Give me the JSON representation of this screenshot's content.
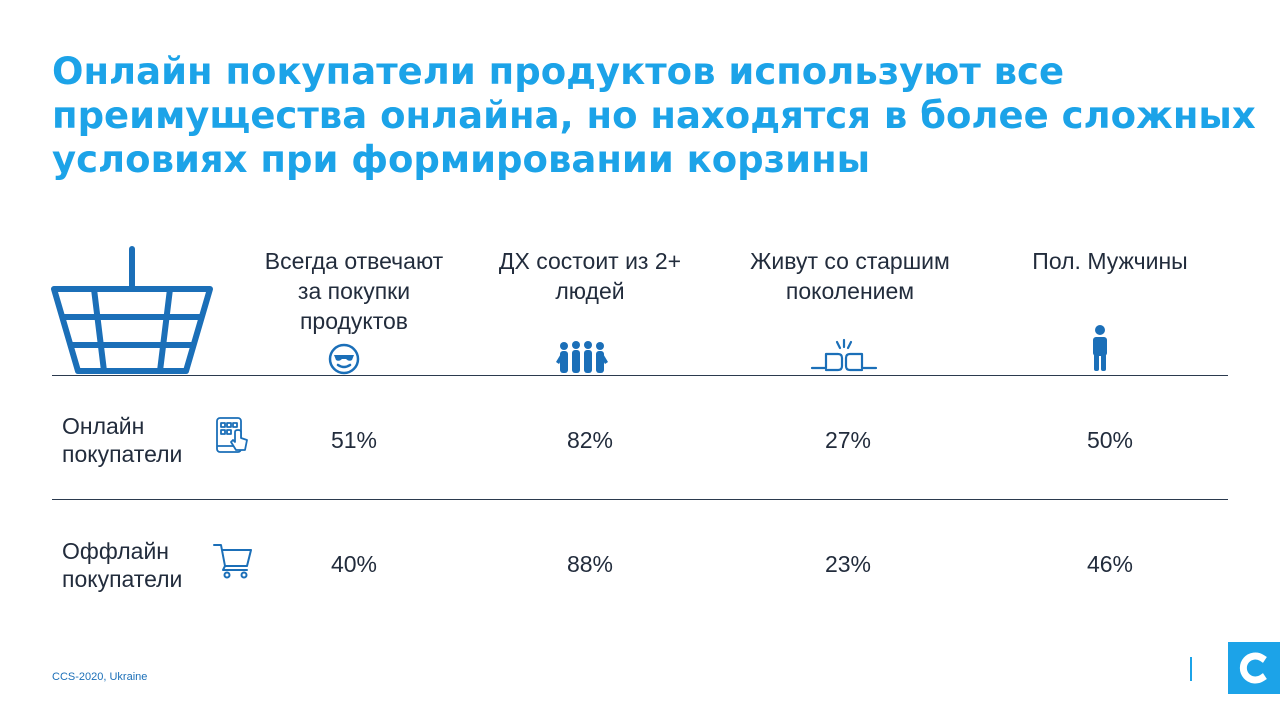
{
  "title": {
    "lines": [
      "Онлайн покупатели продуктов используют все",
      "преимущества онлайна, но находятся в более сложных",
      "условиях при формировании корзины"
    ]
  },
  "columns": [
    {
      "lines": [
        "Всегда отвечают",
        "за покупки",
        "продуктов"
      ],
      "icon": "sunglasses-smiley-icon"
    },
    {
      "lines": [
        "ДХ состоит из 2+",
        "людей"
      ],
      "icon": "people-group-icon"
    },
    {
      "lines": [
        "Живут со старшим",
        "поколением"
      ],
      "icon": "fist-bump-icon"
    },
    {
      "lines": [
        "Пол. Мужчины"
      ],
      "icon": "man-icon"
    }
  ],
  "rows": [
    {
      "label_lines": [
        "Онлайн",
        "покупатели"
      ],
      "icon": "tablet-touch-icon",
      "values": [
        "51%",
        "82%",
        "27%",
        "50%"
      ]
    },
    {
      "label_lines": [
        "Оффлайн",
        "покупатели"
      ],
      "icon": "shopping-cart-icon",
      "values": [
        "40%",
        "88%",
        "23%",
        "46%"
      ]
    }
  ],
  "footer": {
    "source": "CCS-2020, Ukraine"
  },
  "colors": {
    "accent": "#1ca3e8",
    "text": "#222c3c",
    "rule": "#2b3a4e",
    "icon": "#1b6fb8"
  }
}
